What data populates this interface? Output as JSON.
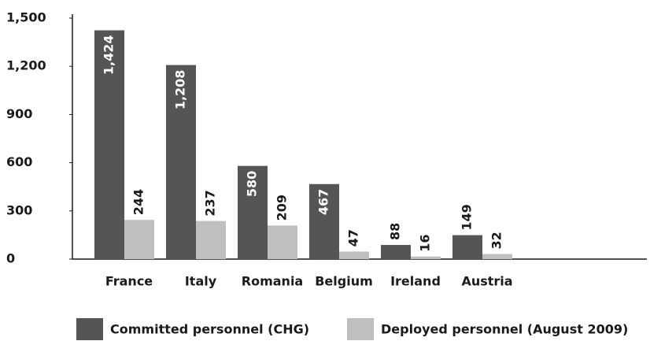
{
  "chart_data": {
    "type": "bar",
    "categories": [
      "France",
      "Italy",
      "Romania",
      "Belgium",
      "Ireland",
      "Austria"
    ],
    "series": [
      {
        "name": "Committed personnel (CHG)",
        "color": "#555555",
        "values": [
          1424,
          1208,
          580,
          467,
          88,
          149
        ]
      },
      {
        "name": "Deployed personnel (August 2009)",
        "color": "#bfbfbf",
        "values": [
          244,
          237,
          209,
          47,
          16,
          32
        ]
      }
    ],
    "ylim": [
      0,
      1500
    ],
    "yticks": [
      0,
      300,
      600,
      900,
      {
        "value": 1200,
        "label": "1,200"
      },
      {
        "value": 1500,
        "label": "1,500"
      }
    ],
    "value_labels": [
      [
        "1,424",
        "1,208",
        "580",
        "467",
        "88",
        "149"
      ],
      [
        "244",
        "237",
        "209",
        "47",
        "16",
        "32"
      ]
    ],
    "grid": false
  }
}
